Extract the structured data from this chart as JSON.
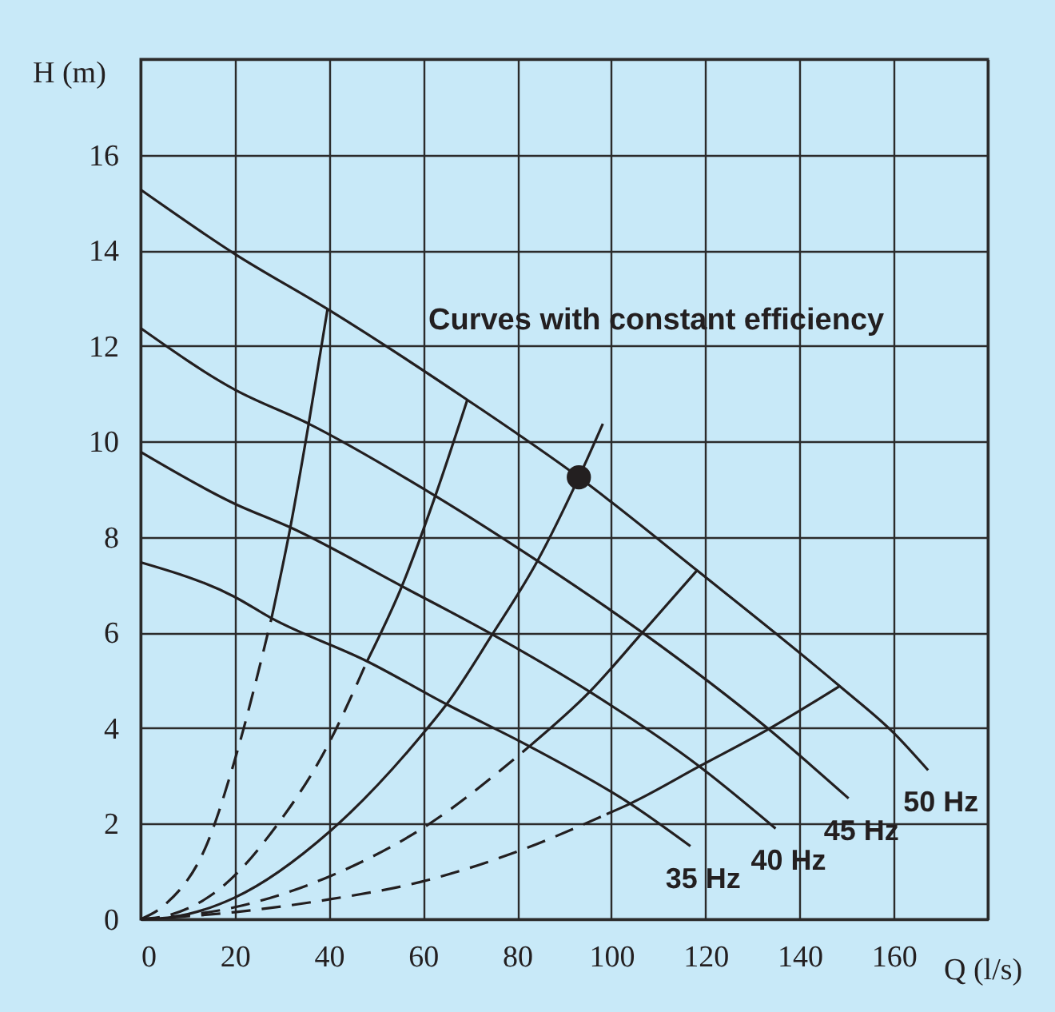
{
  "chart_data": {
    "type": "line",
    "xlabel": "Q (l/s)",
    "ylabel": "H (m)",
    "annotations": [
      "Curves with constant efficiency"
    ],
    "xlim": [
      0,
      180
    ],
    "ylim": [
      0,
      18
    ],
    "xticks": [
      0,
      20,
      40,
      60,
      80,
      100,
      120,
      140,
      160,
      {
        "value": 180,
        "label": null
      }
    ],
    "yticks": [
      0,
      2,
      4,
      6,
      8,
      10,
      12,
      14,
      16,
      {
        "value": 18,
        "label": null
      }
    ],
    "grid": true,
    "series": [
      {
        "name": "50 Hz",
        "color": "#231f20",
        "line_style": "solid",
        "x": [
          0,
          19.9,
          39.7,
          69.4,
          93.1,
          118.2,
          148.5,
          160,
          167.3
        ],
        "values": [
          15.27,
          13.93,
          12.77,
          10.87,
          9.25,
          7.3,
          4.88,
          3.9,
          3.12
        ]
      },
      {
        "name": "45 Hz",
        "color": "#231f20",
        "line_style": "solid",
        "x": [
          0,
          19.9,
          35.7,
          62.6,
          84.3,
          106.6,
          133.4,
          150.4
        ],
        "values": [
          12.37,
          11.09,
          10.37,
          8.86,
          7.5,
          6.0,
          3.98,
          2.53
        ]
      },
      {
        "name": "40 Hz",
        "color": "#231f20",
        "line_style": "solid",
        "x": [
          0,
          19.9,
          31.8,
          55.5,
          74.7,
          95.4,
          118.7,
          134.9
        ],
        "values": [
          9.78,
          8.7,
          8.2,
          6.97,
          5.96,
          4.76,
          3.2,
          1.9
        ]
      },
      {
        "name": "35 Hz",
        "color": "#231f20",
        "line_style": "solid",
        "x": [
          0,
          19.9,
          27.8,
          48.1,
          65,
          82.6,
          104,
          116.8
        ],
        "values": [
          7.47,
          6.75,
          6.3,
          5.4,
          4.5,
          3.62,
          2.42,
          1.53
        ]
      },
      {
        "type": "line",
        "color": "#231f20",
        "line_style": "solid",
        "x": [
          27.8,
          31.8,
          35.7,
          39.7
        ],
        "values": [
          6.3,
          8.2,
          10.37,
          12.77
        ]
      },
      {
        "type": "line",
        "color": "#231f20",
        "line_style": "dashed",
        "x": [
          0,
          5.1,
          14.2,
          19.9,
          27.8
        ],
        "values": [
          0,
          0.3,
          1.6,
          3.3,
          6.3
        ]
      },
      {
        "type": "line",
        "color": "#231f20",
        "line_style": "solid",
        "x": [
          48.1,
          55.5,
          62.6,
          69.4
        ],
        "values": [
          5.4,
          6.97,
          8.86,
          10.87
        ]
      },
      {
        "type": "line",
        "color": "#231f20",
        "line_style": "dashed",
        "x": [
          0,
          6.5,
          17.6,
          28.8,
          39,
          48.1
        ],
        "values": [
          0,
          0.1,
          0.7,
          1.95,
          3.5,
          5.4
        ]
      },
      {
        "type": "line",
        "color": "#231f20",
        "line_style": "solid",
        "x": [
          0,
          7,
          19.9,
          40.2,
          60.6,
          65,
          74.7,
          84.3,
          93.1,
          98.2
        ],
        "values": [
          0,
          0.05,
          0.45,
          1.84,
          3.96,
          4.5,
          5.96,
          7.5,
          9.25,
          10.37
        ]
      },
      {
        "type": "line",
        "color": "#231f20",
        "line_style": "solid",
        "x": [
          82.6,
          95.4,
          106.6,
          118.2
        ],
        "values": [
          3.62,
          4.76,
          6.0,
          7.3
        ]
      },
      {
        "type": "line",
        "color": "#231f20",
        "line_style": "dashed",
        "x": [
          0,
          19.9,
          40.2,
          60.6,
          82.6
        ],
        "values": [
          0,
          0.25,
          0.9,
          1.95,
          3.62
        ]
      },
      {
        "type": "line",
        "color": "#231f20",
        "line_style": "solid",
        "x": [
          99,
          104,
          118.7,
          133.4,
          148.5
        ],
        "values": [
          2.2,
          2.42,
          3.2,
          3.98,
          4.88
        ]
      },
      {
        "type": "line",
        "color": "#231f20",
        "line_style": "dashed",
        "x": [
          0,
          20,
          39,
          59.4,
          80.9,
          99
        ],
        "values": [
          0,
          0.15,
          0.4,
          0.78,
          1.45,
          2.2
        ]
      },
      {
        "type": "scatter",
        "marker": "circle",
        "color": "#231f20",
        "x": [
          93.1
        ],
        "values": [
          9.25
        ]
      }
    ]
  }
}
